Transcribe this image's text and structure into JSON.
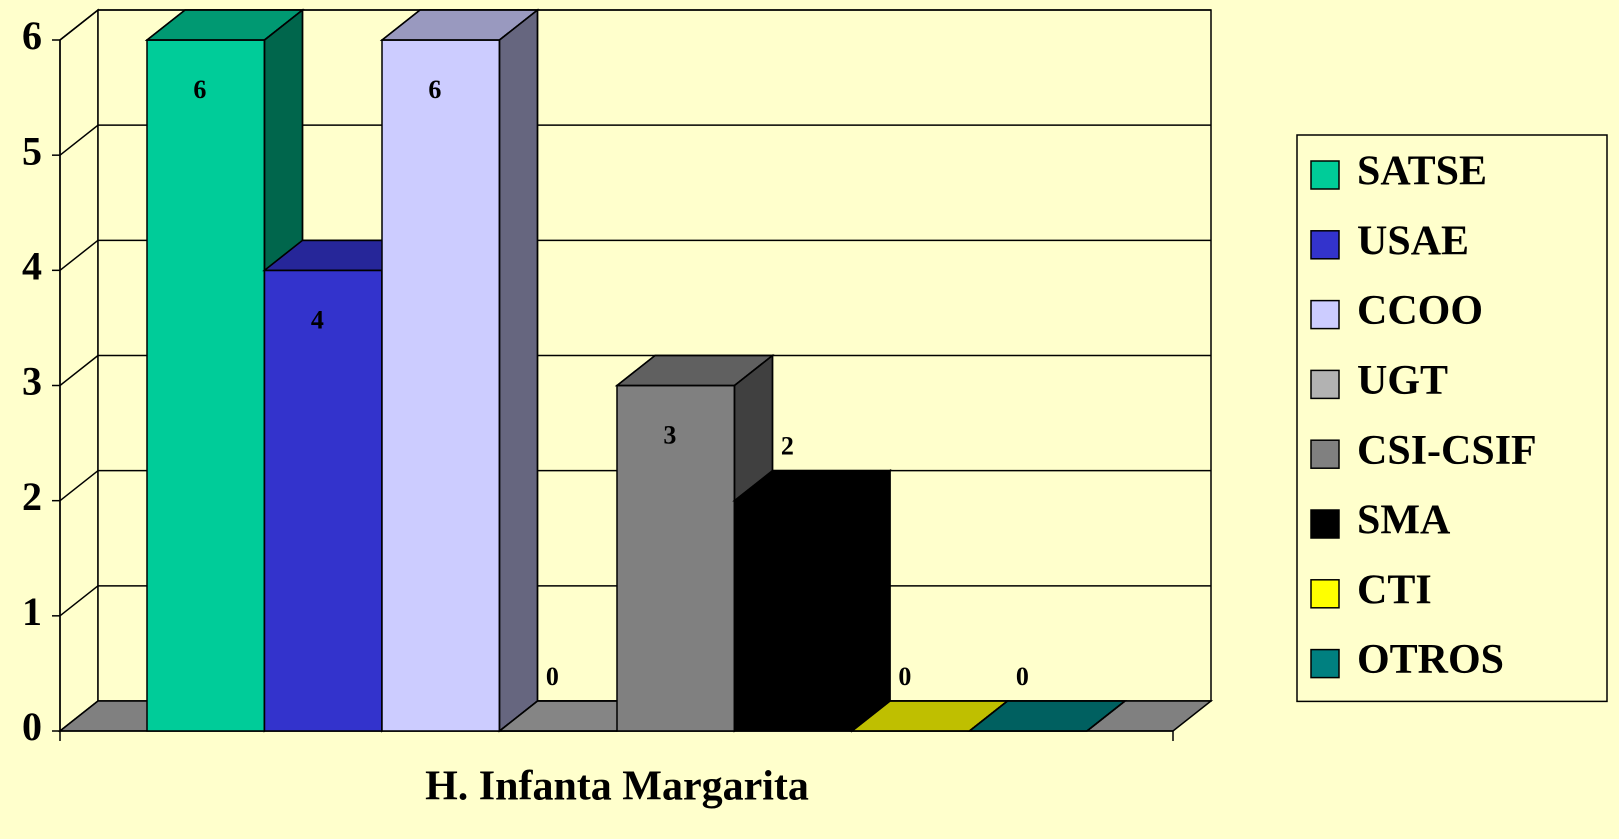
{
  "chart_data": {
    "type": "bar3d",
    "categories": [
      "H. Infanta Margarita"
    ],
    "series": [
      {
        "name": "SATSE",
        "color": "#00cc99",
        "values": [
          6
        ]
      },
      {
        "name": "USAE",
        "color": "#3333cc",
        "values": [
          4
        ]
      },
      {
        "name": "CCOO",
        "color": "#ccccff",
        "values": [
          6
        ]
      },
      {
        "name": "UGT",
        "color": "#b2b2b2",
        "values": [
          0
        ]
      },
      {
        "name": "CSI-CSIF",
        "color": "#808080",
        "values": [
          3
        ]
      },
      {
        "name": "SMA",
        "color": "#000000",
        "values": [
          2
        ]
      },
      {
        "name": "CTI",
        "color": "#ffff00",
        "values": [
          0
        ]
      },
      {
        "name": "OTROS",
        "color": "#008080",
        "values": [
          0
        ]
      }
    ],
    "ylim": [
      0,
      6
    ],
    "yticks": [
      0,
      1,
      2,
      3,
      4,
      5,
      6
    ],
    "grid": true,
    "legend": "right"
  }
}
